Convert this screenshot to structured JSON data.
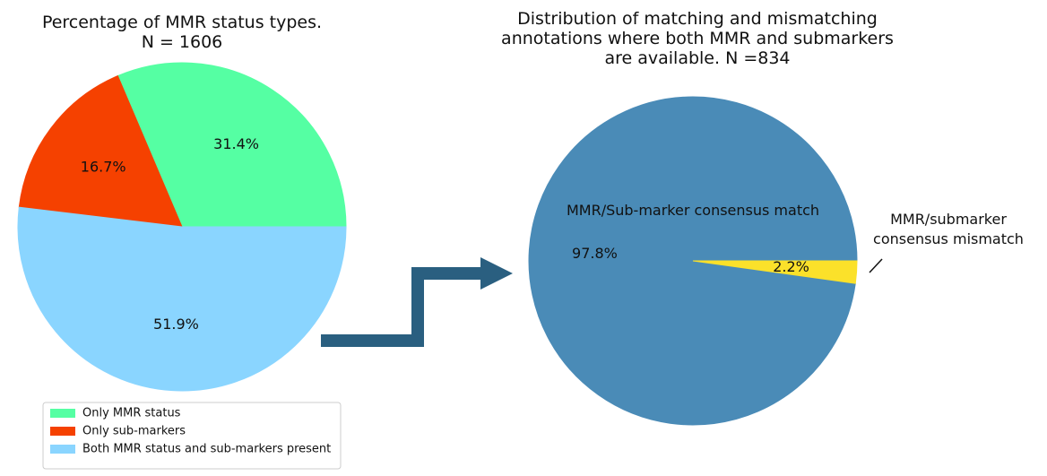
{
  "chart_data": [
    {
      "type": "pie",
      "title": "Percentage of MMR status types.\nN = 1606",
      "categories": [
        "Only MMR status",
        "Only sub-markers",
        "Both MMR status and sub-markers present"
      ],
      "values": [
        31.4,
        16.7,
        51.9
      ],
      "value_labels": [
        "31.4%",
        "16.7%",
        "51.9%"
      ],
      "colors": [
        "#55ffa3",
        "#f54100",
        "#8ad5ff"
      ],
      "legend": "bottom"
    },
    {
      "type": "pie",
      "title": "Distribution of matching and mismatching\nannotations where both MMR and submarkers\nare available. N =834",
      "categories": [
        "MMR/Sub-marker consensus match",
        "MMR/submarker consensus mismatch"
      ],
      "values": [
        97.8,
        2.2
      ],
      "value_labels": [
        "97.8%",
        "2.2%"
      ],
      "colors": [
        "#4a8bb7",
        "#fbe12a"
      ]
    }
  ]
}
